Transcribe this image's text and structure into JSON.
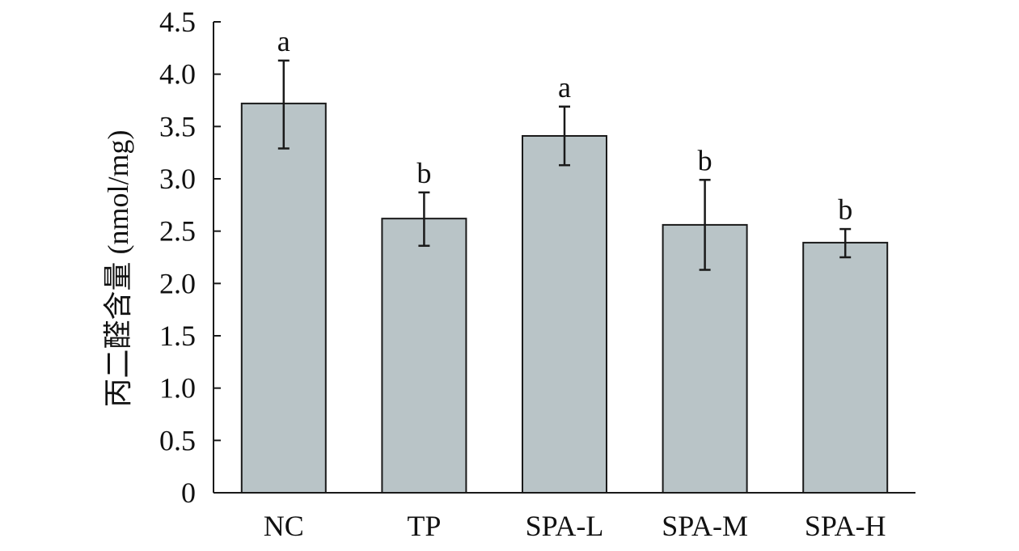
{
  "chart_data": {
    "type": "bar",
    "title": "",
    "xlabel": "",
    "ylabel": "丙二醛含量 (nmol/mg)",
    "categories": [
      "NC",
      "TP",
      "SPA-L",
      "SPA-M",
      "SPA-H"
    ],
    "values": [
      3.72,
      2.62,
      3.41,
      2.56,
      2.39
    ],
    "error_low": [
      3.29,
      2.36,
      3.13,
      2.13,
      2.25
    ],
    "error_high": [
      4.13,
      2.87,
      3.69,
      2.99,
      2.52
    ],
    "significance": [
      "a",
      "b",
      "a",
      "b",
      "b"
    ],
    "ylim": [
      0,
      4.5
    ],
    "yticks": [
      0,
      0.5,
      1.0,
      1.5,
      2.0,
      2.5,
      3.0,
      3.5,
      4.0,
      4.5
    ],
    "ytick_labels": [
      "0",
      "0.5",
      "1.0",
      "1.5",
      "2.0",
      "2.5",
      "3.0",
      "3.5",
      "4.0",
      "4.5"
    ],
    "grid": false,
    "legend": "none",
    "colors": {
      "bar_fill": "#b9c4c7",
      "bar_stroke": "#1a1a1a",
      "axis": "#1a1a1a",
      "text": "#111111"
    }
  }
}
